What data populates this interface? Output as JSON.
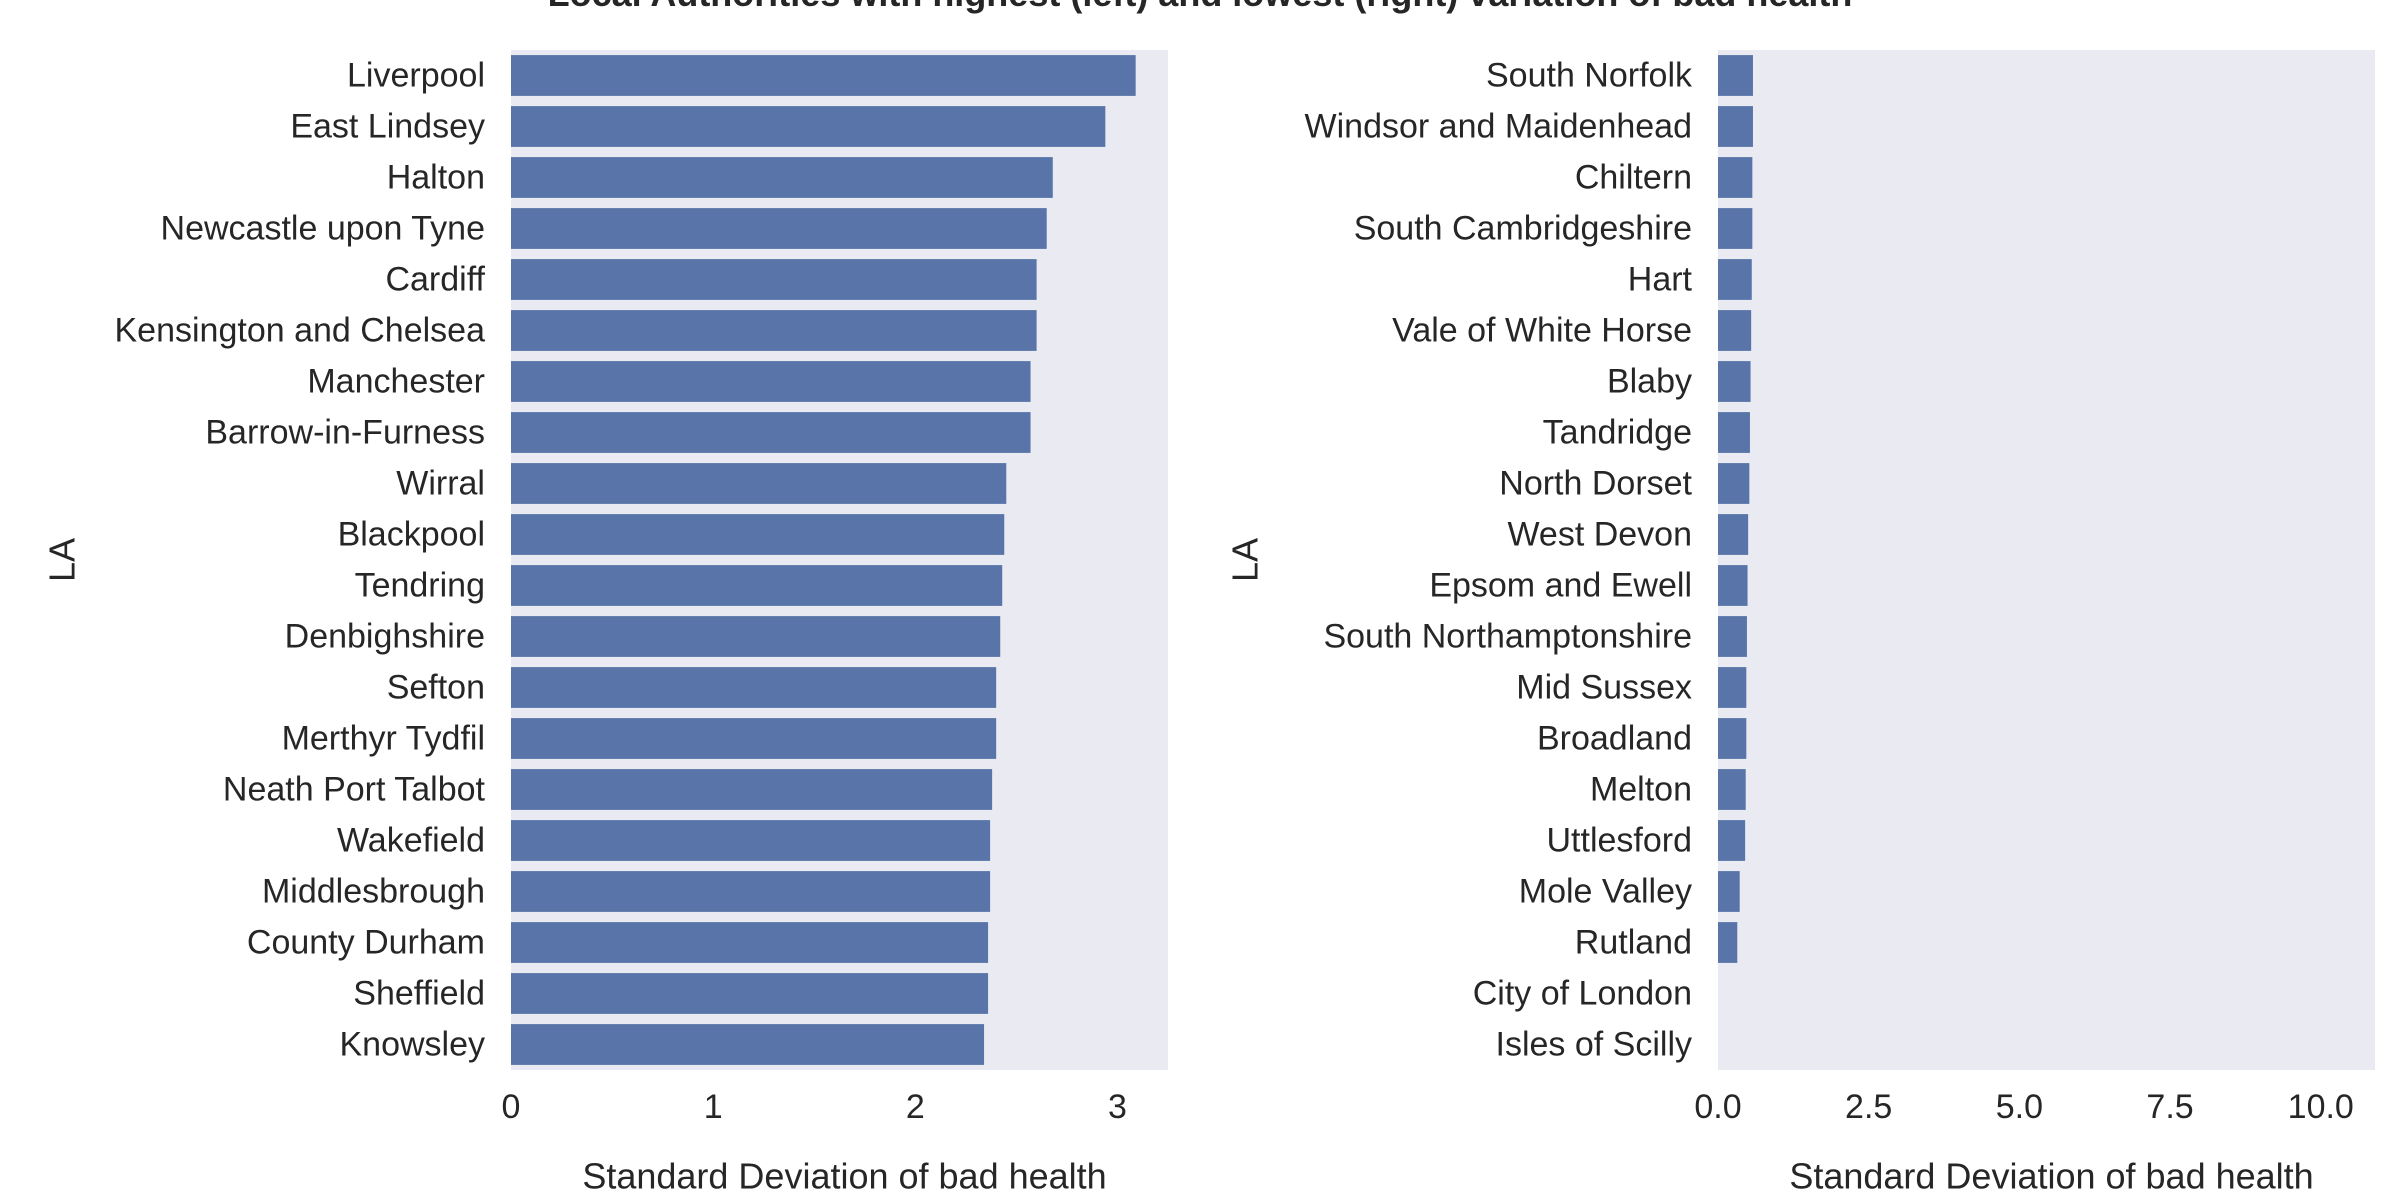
{
  "figure": {
    "title": "Local Authorities with highest (left) and lowest (right) variation of bad health"
  },
  "colors": {
    "panel_background": "#eaeaf2",
    "bar": "#5874a8",
    "text": "#262626"
  },
  "chart_data": [
    {
      "type": "bar",
      "orientation": "horizontal",
      "title": "",
      "xlabel": "Standard Deviation of bad health",
      "ylabel": "LA",
      "xlim": [
        0,
        3.25
      ],
      "xticks": [
        0,
        1,
        2,
        3
      ],
      "xtick_labels": [
        "0",
        "1",
        "2",
        "3"
      ],
      "grid": false,
      "categories": [
        "Liverpool",
        "East Lindsey",
        "Halton",
        "Newcastle upon Tyne",
        "Cardiff",
        "Kensington and Chelsea",
        "Manchester",
        "Barrow-in-Furness",
        "Wirral",
        "Blackpool",
        "Tendring",
        "Denbighshire",
        "Sefton",
        "Merthyr Tydfil",
        "Neath Port Talbot",
        "Wakefield",
        "Middlesbrough",
        "County Durham",
        "Sheffield",
        "Knowsley"
      ],
      "values": [
        3.09,
        2.94,
        2.68,
        2.65,
        2.6,
        2.6,
        2.57,
        2.57,
        2.45,
        2.44,
        2.43,
        2.42,
        2.4,
        2.4,
        2.38,
        2.37,
        2.37,
        2.36,
        2.36,
        2.34
      ]
    },
    {
      "type": "bar",
      "orientation": "horizontal",
      "title": "",
      "xlabel": "Standard Deviation of bad health",
      "ylabel": "LA",
      "xlim": [
        0,
        10.9
      ],
      "xticks": [
        0,
        2.5,
        5.0,
        7.5,
        10.0
      ],
      "xtick_labels": [
        "0.0",
        "2.5",
        "5.0",
        "7.5",
        "10.0"
      ],
      "grid": false,
      "categories": [
        "South Norfolk",
        "Windsor and Maidenhead",
        "Chiltern",
        "South Cambridgeshire",
        "Hart",
        "Vale of White Horse",
        "Blaby",
        "Tandridge",
        "North Dorset",
        "West Devon",
        "Epsom and Ewell",
        "South Northamptonshire",
        "Mid Sussex",
        "Broadland",
        "Melton",
        "Uttlesford",
        "Mole Valley",
        "Rutland",
        "City of London",
        "Isles of Scilly"
      ],
      "values": [
        0.58,
        0.58,
        0.57,
        0.57,
        0.56,
        0.55,
        0.54,
        0.53,
        0.52,
        0.5,
        0.49,
        0.48,
        0.47,
        0.47,
        0.46,
        0.45,
        0.36,
        0.32,
        0,
        0
      ]
    }
  ]
}
